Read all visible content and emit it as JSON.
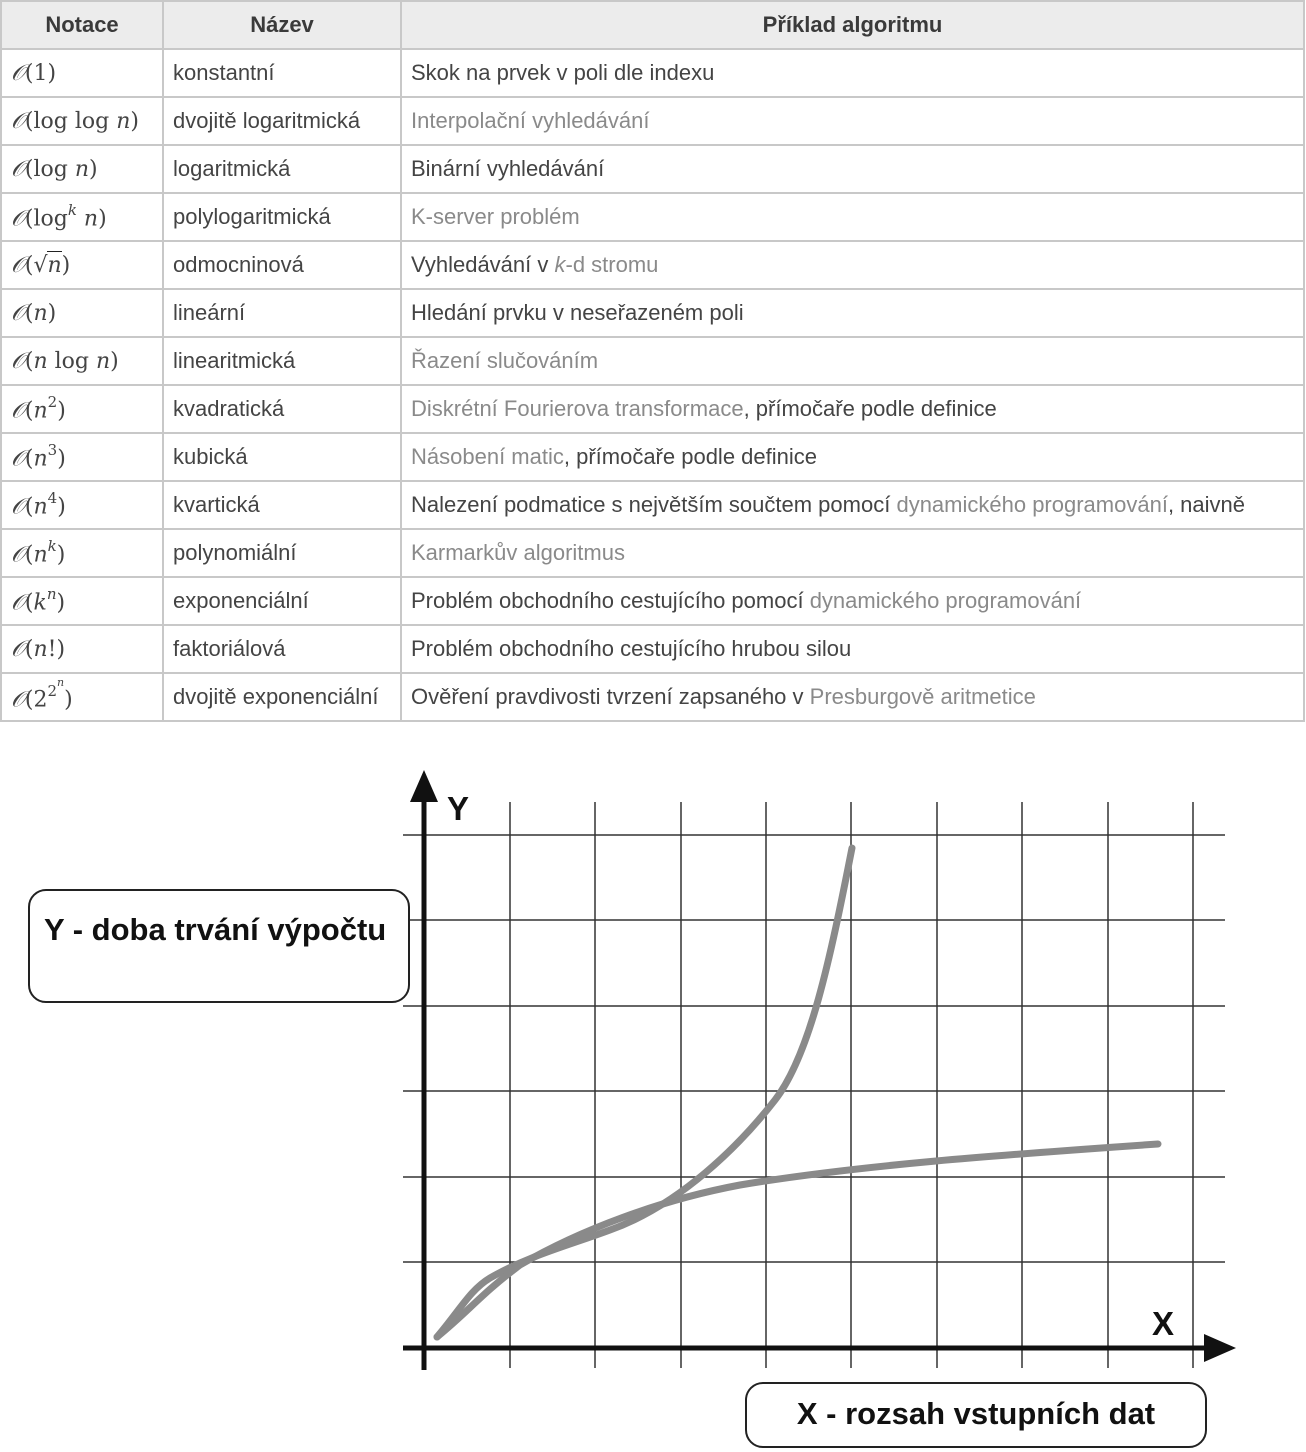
{
  "table": {
    "headers": [
      "Notace",
      "Název",
      "Příklad algoritmu"
    ],
    "rows": [
      {
        "notation": "𝒪(1)",
        "name": "konstantní",
        "example": [
          {
            "t": "Skok na prvek v ",
            "link": false
          },
          {
            "t": "poli",
            "link": false
          },
          {
            "t": " dle indexu",
            "link": false
          }
        ]
      },
      {
        "notation": "𝒪(log log n)",
        "name": "dvojitě logaritmická",
        "example": [
          {
            "t": "Interpolační vyhledávání",
            "link": true
          }
        ]
      },
      {
        "notation": "𝒪(log n)",
        "name": "logaritmická",
        "example": [
          {
            "t": "Binární vyhledávání",
            "link": false
          }
        ]
      },
      {
        "notation": "𝒪(log^k n)",
        "name": "polylogaritmická",
        "example": [
          {
            "t": "K-server problém",
            "link": true
          }
        ]
      },
      {
        "notation": "𝒪(√n)",
        "name": "odmocninová",
        "example": [
          {
            "t": "Vyhledávání v ",
            "link": false
          },
          {
            "t": "k",
            "link": true,
            "italic": true
          },
          {
            "t": "-d stromu",
            "link": true
          }
        ]
      },
      {
        "notation": "𝒪(n)",
        "name": "lineární",
        "example": [
          {
            "t": "Hledání prvku v neseřazeném poli",
            "link": false
          }
        ]
      },
      {
        "notation": "𝒪(n log n)",
        "name": "linearitmická",
        "example": [
          {
            "t": "Řazení slučováním",
            "link": true
          }
        ]
      },
      {
        "notation": "𝒪(n^2)",
        "name": "kvadratická",
        "example": [
          {
            "t": "Diskrétní Fourierova transformace",
            "link": true
          },
          {
            "t": ", přímočaře podle definice",
            "link": false
          }
        ]
      },
      {
        "notation": "𝒪(n^3)",
        "name": "kubická",
        "example": [
          {
            "t": "Násobení matic",
            "link": true
          },
          {
            "t": ", přímočaře podle definice",
            "link": false
          }
        ]
      },
      {
        "notation": "𝒪(n^4)",
        "name": "kvartická",
        "example": [
          {
            "t": "Nalezení podmatice s největším součtem pomocí ",
            "link": false
          },
          {
            "t": "dynamického programování",
            "link": true
          },
          {
            "t": ", naivně",
            "link": false
          }
        ]
      },
      {
        "notation": "𝒪(n^k)",
        "name": "polynomiální",
        "example": [
          {
            "t": "Karmarkův algoritmus",
            "link": true
          }
        ]
      },
      {
        "notation": "𝒪(k^n)",
        "name": "exponenciální",
        "example": [
          {
            "t": "Problém obchodního cestujícího pomocí ",
            "link": false
          },
          {
            "t": "dynamického programování",
            "link": true
          }
        ]
      },
      {
        "notation": "𝒪(n!)",
        "name": "faktoriálová",
        "example": [
          {
            "t": "Problém obchodního cestujícího hrubou silou",
            "link": false
          }
        ]
      },
      {
        "notation": "𝒪(2^2^n)",
        "name": "dvojitě exponenciální",
        "example": [
          {
            "t": "Ověření pravdivosti tvrzení zapsaného v ",
            "link": false
          },
          {
            "t": "Presburgově aritmetice",
            "link": true
          }
        ]
      }
    ]
  },
  "graph": {
    "y_axis_letter": "Y",
    "x_axis_letter": "X",
    "y_callout": "Y - doba trvání výpočtu",
    "x_callout": "X - rozsah vstupních dat",
    "curve_color": "#8a8a8a",
    "axis_color": "#111111",
    "grid_color": "#333333"
  }
}
